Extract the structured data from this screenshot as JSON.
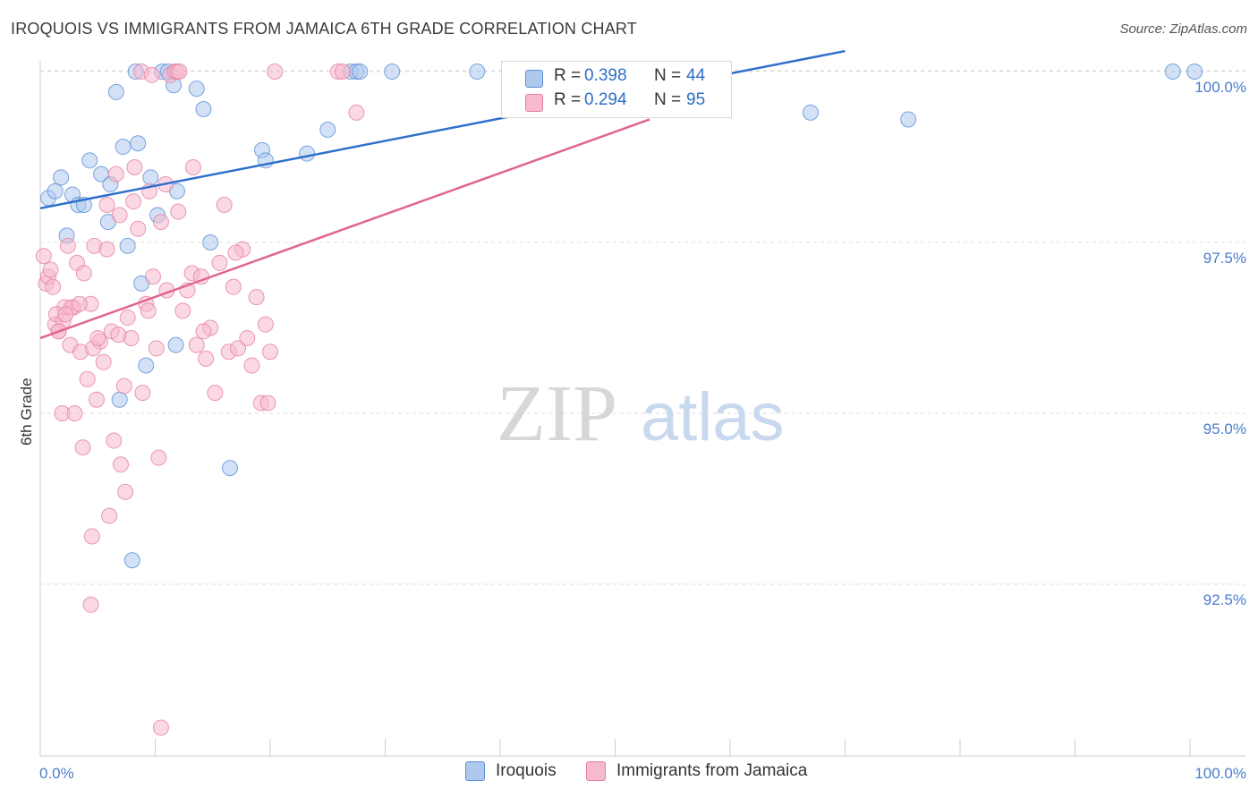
{
  "title": "IROQUOIS VS IMMIGRANTS FROM JAMAICA 6TH GRADE CORRELATION CHART",
  "source": "Source: ZipAtlas.com",
  "watermark": {
    "zip": "ZIP",
    "atlas": "atlas"
  },
  "legend": {
    "r_label": "R =",
    "n_label": "N =",
    "rows": [
      {
        "r": "0.398",
        "n": "44"
      },
      {
        "r": "0.294",
        "n": "95"
      }
    ]
  },
  "colors": {
    "blue_fill": "#aec8ee",
    "blue_stroke": "#5b8fd6",
    "blue_line": "#2e6fcc",
    "pink_fill": "#f6b9cd",
    "pink_stroke": "#e67fa3",
    "pink_line": "#e06590",
    "tick_text": "#4a7cc9",
    "grid": "#dcdcdc"
  },
  "chart_data": {
    "type": "scatter",
    "title": "IROQUOIS VS IMMIGRANTS FROM JAMAICA 6TH GRADE CORRELATION CHART",
    "xlabel": "",
    "ylabel": "6th Grade",
    "xlim": [
      0,
      100
    ],
    "ylim": [
      90.3,
      100.4
    ],
    "x_ticks": [
      "0.0%",
      "100.0%"
    ],
    "y_ticks": [
      {
        "value": 100.0,
        "label": "100.0%"
      },
      {
        "value": 97.5,
        "label": "97.5%"
      },
      {
        "value": 95.0,
        "label": "95.0%"
      },
      {
        "value": 92.5,
        "label": "92.5%"
      }
    ],
    "grid": true,
    "series": [
      {
        "name": "Iroquois",
        "color": "#aec8ee",
        "trend": {
          "x": [
            0,
            70
          ],
          "y": [
            98.0,
            100.3
          ]
        },
        "points": [
          [
            0.7,
            98.15
          ],
          [
            1.3,
            98.25
          ],
          [
            1.8,
            98.45
          ],
          [
            2.3,
            97.6
          ],
          [
            2.8,
            98.2
          ],
          [
            3.3,
            98.05
          ],
          [
            3.8,
            98.05
          ],
          [
            4.3,
            98.7
          ],
          [
            5.3,
            98.5
          ],
          [
            5.9,
            97.8
          ],
          [
            6.1,
            98.35
          ],
          [
            6.6,
            99.7
          ],
          [
            7.2,
            98.9
          ],
          [
            7.6,
            97.45
          ],
          [
            8.3,
            100.0
          ],
          [
            8.5,
            98.95
          ],
          [
            8.8,
            96.9
          ],
          [
            9.2,
            95.7
          ],
          [
            9.6,
            98.45
          ],
          [
            10.2,
            97.9
          ],
          [
            10.6,
            100.0
          ],
          [
            11.1,
            100.0
          ],
          [
            11.6,
            99.8
          ],
          [
            11.9,
            98.25
          ],
          [
            13.6,
            99.75
          ],
          [
            14.8,
            97.5
          ],
          [
            16.5,
            94.2
          ],
          [
            19.3,
            98.85
          ],
          [
            19.6,
            98.7
          ],
          [
            23.2,
            98.8
          ],
          [
            25.0,
            99.15
          ],
          [
            27.0,
            100.0
          ],
          [
            27.5,
            100.0
          ],
          [
            27.8,
            100.0
          ],
          [
            30.6,
            100.0
          ],
          [
            38.0,
            100.0
          ],
          [
            67.0,
            99.4
          ],
          [
            75.5,
            99.3
          ],
          [
            98.5,
            100.0
          ],
          [
            100.4,
            100.0
          ],
          [
            11.8,
            96.0
          ],
          [
            14.2,
            99.45
          ],
          [
            6.9,
            95.2
          ],
          [
            8.0,
            92.85
          ]
        ]
      },
      {
        "name": "Immigrants from Jamaica",
        "color": "#f6b9cd",
        "trend": {
          "x": [
            0,
            53
          ],
          "y": [
            96.1,
            99.3
          ]
        },
        "points": [
          [
            0.3,
            97.3
          ],
          [
            0.5,
            96.9
          ],
          [
            0.7,
            97.0
          ],
          [
            0.9,
            97.1
          ],
          [
            1.1,
            96.85
          ],
          [
            1.3,
            96.3
          ],
          [
            1.6,
            96.2
          ],
          [
            1.9,
            95.0
          ],
          [
            2.1,
            96.55
          ],
          [
            2.4,
            97.45
          ],
          [
            2.6,
            96.0
          ],
          [
            2.9,
            96.55
          ],
          [
            3.2,
            97.2
          ],
          [
            3.5,
            95.9
          ],
          [
            3.8,
            97.05
          ],
          [
            4.1,
            95.5
          ],
          [
            4.4,
            96.6
          ],
          [
            4.7,
            97.45
          ],
          [
            4.9,
            95.2
          ],
          [
            5.2,
            96.05
          ],
          [
            5.5,
            95.75
          ],
          [
            5.8,
            97.4
          ],
          [
            6.2,
            96.2
          ],
          [
            6.6,
            98.5
          ],
          [
            6.9,
            97.9
          ],
          [
            7.3,
            95.4
          ],
          [
            7.6,
            96.4
          ],
          [
            7.9,
            96.1
          ],
          [
            8.2,
            98.6
          ],
          [
            8.5,
            97.7
          ],
          [
            8.9,
            95.3
          ],
          [
            9.2,
            96.6
          ],
          [
            9.5,
            98.25
          ],
          [
            9.8,
            97.0
          ],
          [
            10.1,
            95.95
          ],
          [
            10.5,
            97.8
          ],
          [
            10.9,
            98.35
          ],
          [
            11.3,
            99.95
          ],
          [
            11.7,
            100.0
          ],
          [
            12.0,
            97.95
          ],
          [
            12.4,
            96.5
          ],
          [
            12.8,
            96.8
          ],
          [
            13.2,
            97.05
          ],
          [
            13.6,
            96.0
          ],
          [
            14.0,
            97.0
          ],
          [
            14.4,
            95.8
          ],
          [
            14.8,
            96.25
          ],
          [
            15.2,
            95.3
          ],
          [
            15.6,
            97.2
          ],
          [
            16.0,
            98.05
          ],
          [
            16.4,
            95.9
          ],
          [
            16.8,
            96.85
          ],
          [
            17.2,
            95.95
          ],
          [
            17.6,
            97.4
          ],
          [
            18.0,
            96.1
          ],
          [
            18.4,
            95.7
          ],
          [
            18.8,
            96.7
          ],
          [
            19.2,
            95.15
          ],
          [
            19.6,
            96.3
          ],
          [
            20.0,
            95.9
          ],
          [
            20.4,
            100.0
          ],
          [
            1.4,
            96.45
          ],
          [
            2.0,
            96.35
          ],
          [
            2.7,
            96.55
          ],
          [
            3.0,
            95.0
          ],
          [
            4.6,
            95.95
          ],
          [
            5.0,
            96.1
          ],
          [
            6.4,
            94.6
          ],
          [
            7.0,
            94.25
          ],
          [
            7.4,
            93.85
          ],
          [
            6.0,
            93.5
          ],
          [
            4.5,
            93.2
          ],
          [
            4.4,
            92.2
          ],
          [
            8.8,
            100.0
          ],
          [
            9.7,
            99.95
          ],
          [
            11.9,
            100.0
          ],
          [
            12.1,
            100.0
          ],
          [
            25.9,
            100.0
          ],
          [
            26.3,
            100.0
          ],
          [
            27.5,
            99.4
          ],
          [
            5.8,
            98.05
          ],
          [
            13.3,
            98.6
          ],
          [
            8.1,
            98.1
          ],
          [
            3.7,
            94.5
          ],
          [
            10.3,
            94.35
          ],
          [
            1.6,
            96.2
          ],
          [
            2.2,
            96.45
          ],
          [
            3.4,
            96.6
          ],
          [
            6.8,
            96.15
          ],
          [
            9.4,
            96.5
          ],
          [
            11.0,
            96.8
          ],
          [
            17.0,
            97.35
          ],
          [
            14.2,
            96.2
          ],
          [
            10.5,
            90.4
          ],
          [
            19.8,
            95.15
          ]
        ]
      }
    ]
  },
  "bottom_legend": [
    {
      "label": "Iroquois"
    },
    {
      "label": "Immigrants from Jamaica"
    }
  ]
}
